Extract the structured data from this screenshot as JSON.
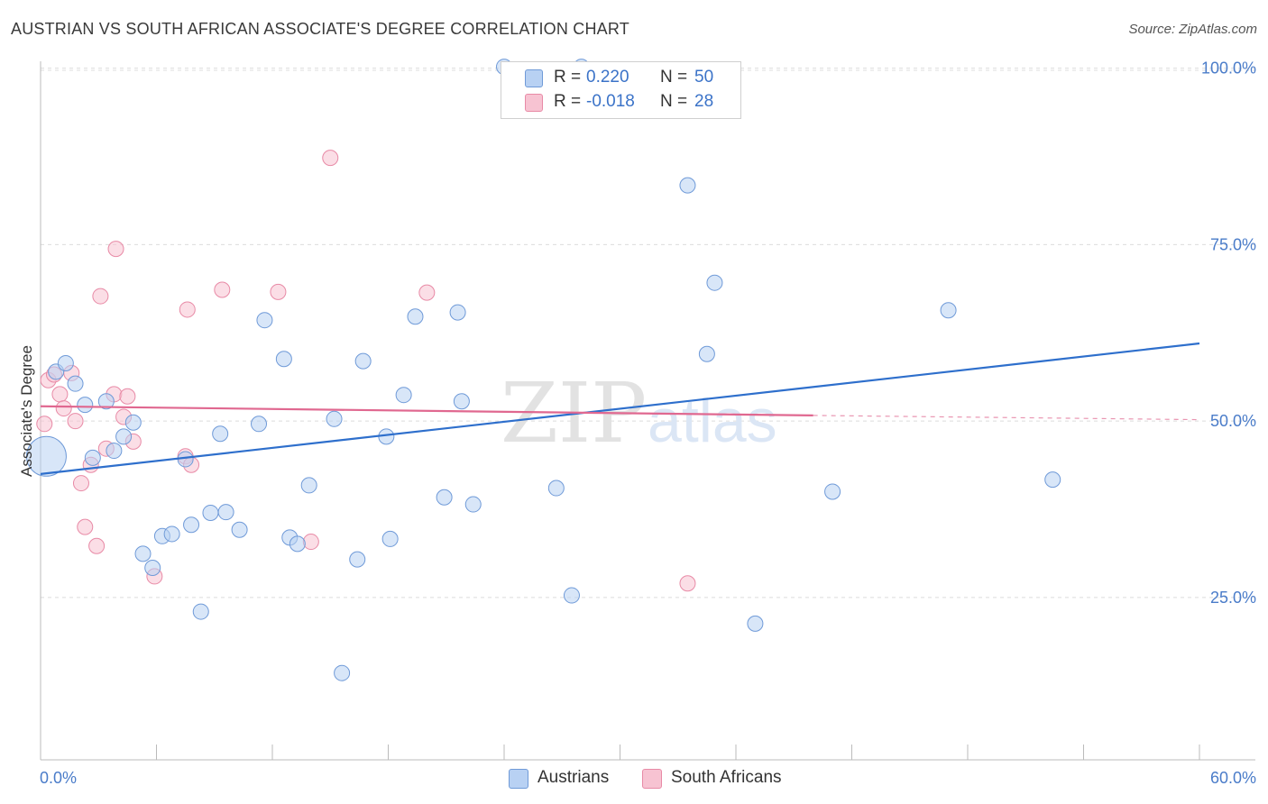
{
  "title": "AUSTRIAN VS SOUTH AFRICAN ASSOCIATE'S DEGREE CORRELATION CHART",
  "source": "Source: ZipAtlas.com",
  "watermark": {
    "zip": "ZIP",
    "atlas": "atlas"
  },
  "legend": {
    "rows": [
      {
        "r_label": "R =",
        "r_value": "0.220",
        "n_label": "N =",
        "n_value": "50"
      },
      {
        "r_label": "R =",
        "r_value": "-0.018",
        "n_label": "N =",
        "n_value": "28"
      }
    ]
  },
  "bottom_legend": {
    "austrians": "Austrians",
    "south_africans": "South Africans"
  },
  "colors": {
    "austrians_fill": "#b8d1f3",
    "austrians_stroke": "#6f9ad8",
    "austrians_line": "#2e6fcc",
    "sa_fill": "#f7c3d2",
    "sa_stroke": "#e88aa6",
    "sa_line": "#e06890",
    "tick": "#4a7cc9",
    "grid": "#dcdcdc"
  },
  "chart_data": {
    "type": "scatter",
    "title": "AUSTRIAN VS SOUTH AFRICAN ASSOCIATE'S DEGREE CORRELATION CHART",
    "xlabel": "",
    "ylabel": "Associate's Degree",
    "xlim": [
      0,
      60
    ],
    "ylim": [
      2,
      102
    ],
    "x_tick_labels": [
      "0.0%",
      "60.0%"
    ],
    "y_ticks": [
      25,
      50,
      75,
      100
    ],
    "y_tick_labels": [
      "25.0%",
      "50.0%",
      "75.0%",
      "100.0%"
    ],
    "series": [
      {
        "name": "Austrians",
        "r": 0.22,
        "n": 50,
        "trend": {
          "x": [
            0,
            60
          ],
          "y": [
            42.5,
            61.0
          ],
          "style": "solid"
        },
        "points": [
          {
            "x": 0.3,
            "y": 45.0,
            "big": true
          },
          {
            "x": 0.8,
            "y": 57.0
          },
          {
            "x": 1.3,
            "y": 58.2
          },
          {
            "x": 1.8,
            "y": 55.3
          },
          {
            "x": 2.3,
            "y": 52.3
          },
          {
            "x": 2.7,
            "y": 44.8
          },
          {
            "x": 3.4,
            "y": 52.8
          },
          {
            "x": 3.8,
            "y": 45.8
          },
          {
            "x": 4.3,
            "y": 47.8
          },
          {
            "x": 4.8,
            "y": 49.8
          },
          {
            "x": 5.3,
            "y": 31.2
          },
          {
            "x": 5.8,
            "y": 29.2
          },
          {
            "x": 6.3,
            "y": 33.7
          },
          {
            "x": 6.8,
            "y": 34.0
          },
          {
            "x": 7.5,
            "y": 44.6
          },
          {
            "x": 7.8,
            "y": 35.3
          },
          {
            "x": 8.3,
            "y": 23.0
          },
          {
            "x": 8.8,
            "y": 37.0
          },
          {
            "x": 9.3,
            "y": 48.2
          },
          {
            "x": 9.6,
            "y": 37.1
          },
          {
            "x": 10.3,
            "y": 34.6
          },
          {
            "x": 11.3,
            "y": 49.6
          },
          {
            "x": 11.6,
            "y": 64.3
          },
          {
            "x": 12.6,
            "y": 58.8
          },
          {
            "x": 12.9,
            "y": 33.5
          },
          {
            "x": 13.3,
            "y": 32.6
          },
          {
            "x": 13.9,
            "y": 40.9
          },
          {
            "x": 15.2,
            "y": 50.3
          },
          {
            "x": 15.6,
            "y": 14.3
          },
          {
            "x": 16.4,
            "y": 30.4
          },
          {
            "x": 16.7,
            "y": 58.5
          },
          {
            "x": 17.9,
            "y": 47.8
          },
          {
            "x": 18.1,
            "y": 33.3
          },
          {
            "x": 18.8,
            "y": 53.7
          },
          {
            "x": 19.4,
            "y": 64.8
          },
          {
            "x": 20.9,
            "y": 39.2
          },
          {
            "x": 21.6,
            "y": 65.4
          },
          {
            "x": 21.8,
            "y": 52.8
          },
          {
            "x": 22.4,
            "y": 38.2
          },
          {
            "x": 24.0,
            "y": 100.2
          },
          {
            "x": 26.7,
            "y": 40.5
          },
          {
            "x": 27.5,
            "y": 25.3
          },
          {
            "x": 28.0,
            "y": 100.2
          },
          {
            "x": 33.5,
            "y": 83.4
          },
          {
            "x": 34.5,
            "y": 59.5
          },
          {
            "x": 34.9,
            "y": 69.6
          },
          {
            "x": 37.0,
            "y": 21.3
          },
          {
            "x": 41.0,
            "y": 40.0
          },
          {
            "x": 47.0,
            "y": 65.7
          },
          {
            "x": 52.4,
            "y": 41.7
          }
        ]
      },
      {
        "name": "South Africans",
        "r": -0.018,
        "n": 28,
        "trend": {
          "x": [
            0,
            40
          ],
          "y": [
            52.1,
            50.8
          ],
          "style": "solid",
          "dashed_extension_to": [
            60,
            50.2
          ]
        },
        "points": [
          {
            "x": 0.2,
            "y": 49.6
          },
          {
            "x": 0.4,
            "y": 55.8
          },
          {
            "x": 0.7,
            "y": 56.6
          },
          {
            "x": 1.0,
            "y": 53.8
          },
          {
            "x": 1.2,
            "y": 51.8
          },
          {
            "x": 1.6,
            "y": 56.8
          },
          {
            "x": 1.8,
            "y": 50.0
          },
          {
            "x": 2.1,
            "y": 41.2
          },
          {
            "x": 2.3,
            "y": 35.0
          },
          {
            "x": 2.6,
            "y": 43.8
          },
          {
            "x": 2.9,
            "y": 32.3
          },
          {
            "x": 3.1,
            "y": 67.7
          },
          {
            "x": 3.4,
            "y": 46.1
          },
          {
            "x": 3.8,
            "y": 53.8
          },
          {
            "x": 3.9,
            "y": 74.4
          },
          {
            "x": 4.3,
            "y": 50.6
          },
          {
            "x": 4.5,
            "y": 53.5
          },
          {
            "x": 4.8,
            "y": 47.1
          },
          {
            "x": 5.9,
            "y": 28.0
          },
          {
            "x": 7.5,
            "y": 45.0
          },
          {
            "x": 7.6,
            "y": 65.8
          },
          {
            "x": 7.8,
            "y": 43.8
          },
          {
            "x": 9.4,
            "y": 68.6
          },
          {
            "x": 12.3,
            "y": 68.3
          },
          {
            "x": 14.0,
            "y": 32.9
          },
          {
            "x": 15.0,
            "y": 87.3
          },
          {
            "x": 20.0,
            "y": 68.2
          },
          {
            "x": 33.5,
            "y": 27.0
          }
        ]
      }
    ]
  }
}
